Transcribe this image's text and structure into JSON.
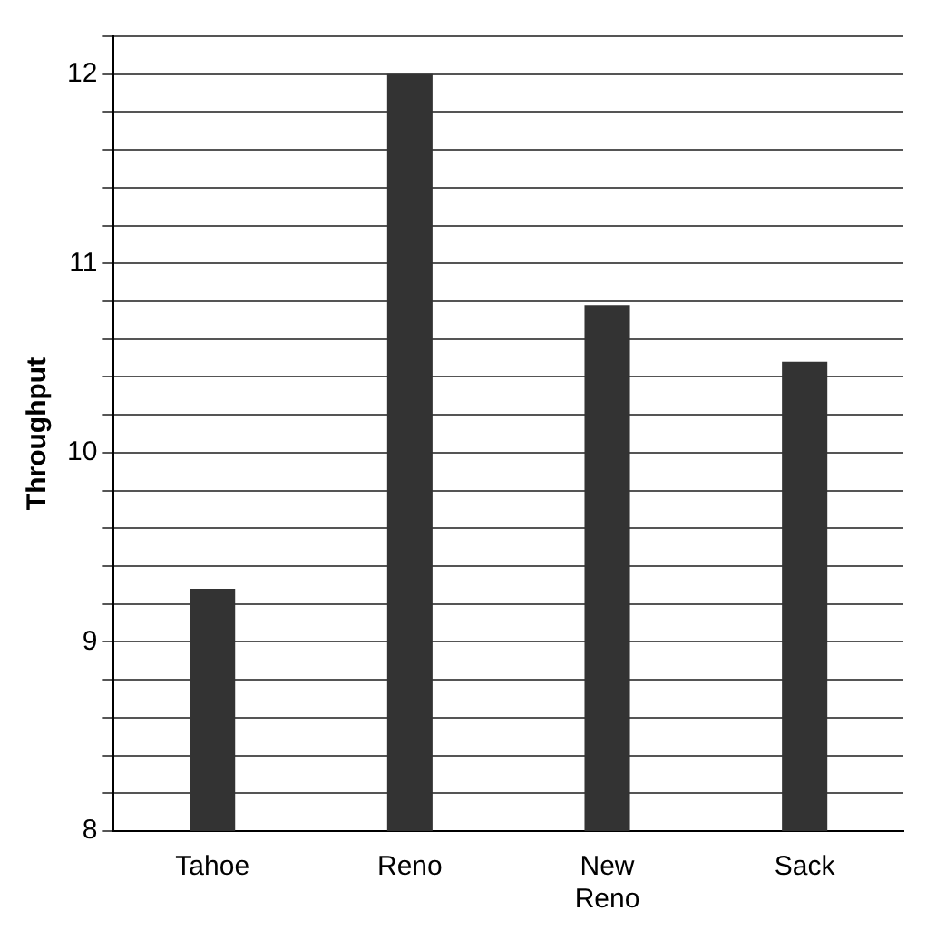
{
  "chart_data": {
    "type": "bar",
    "ylabel": "Throughput",
    "categories": [
      "Tahoe",
      "Reno",
      "New Reno",
      "Sack"
    ],
    "values": [
      9.28,
      12.0,
      10.78,
      10.48
    ],
    "color": "#333333",
    "ylim": [
      8,
      12.2
    ],
    "yticks": [
      8,
      {
        "value": 8.2,
        "label": null
      },
      {
        "value": 8.4,
        "label": null
      },
      {
        "value": 8.6,
        "label": null
      },
      {
        "value": 8.8,
        "label": null
      },
      9,
      {
        "value": 9.2,
        "label": null
      },
      {
        "value": 9.4,
        "label": null
      },
      {
        "value": 9.6,
        "label": null
      },
      {
        "value": 9.8,
        "label": null
      },
      10,
      {
        "value": 10.2,
        "label": null
      },
      {
        "value": 10.4,
        "label": null
      },
      {
        "value": 10.6,
        "label": null
      },
      {
        "value": 10.8,
        "label": null
      },
      11,
      {
        "value": 11.2,
        "label": null
      },
      {
        "value": 11.4,
        "label": null
      },
      {
        "value": 11.6,
        "label": null
      },
      {
        "value": 11.8,
        "label": null
      },
      12,
      {
        "value": 12.2,
        "label": null
      }
    ],
    "grid": "y",
    "legend": false
  }
}
